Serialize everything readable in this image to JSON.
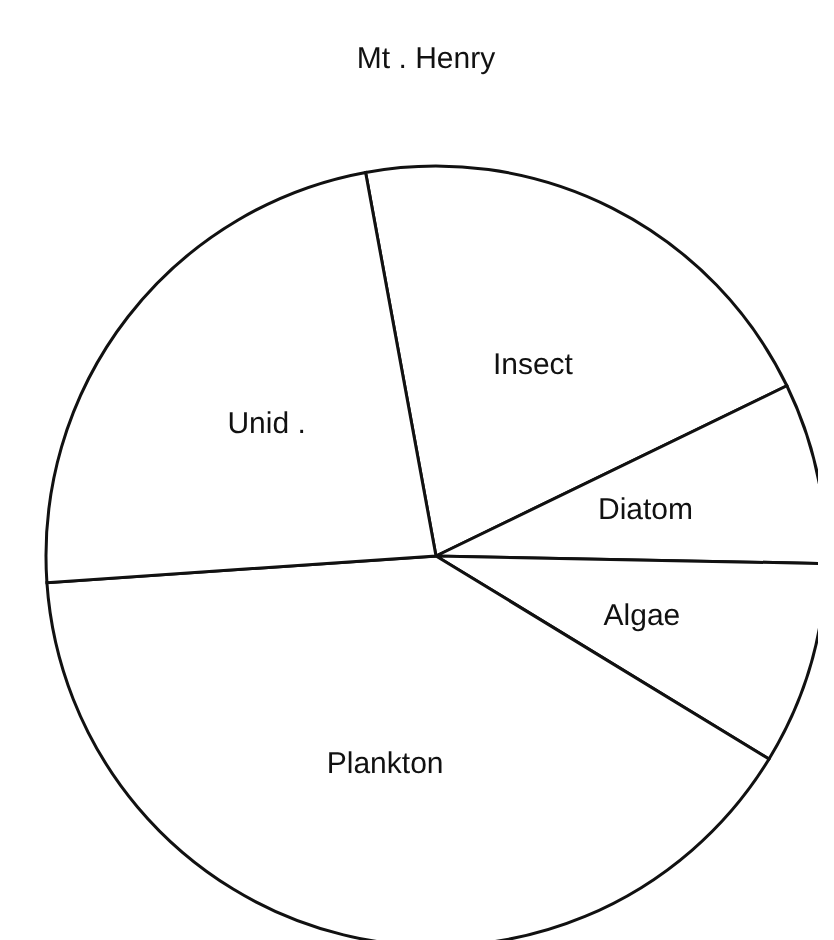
{
  "chart_data": {
    "type": "pie",
    "title": "Mt . Henry",
    "categories": [
      "Insect",
      "Diatom",
      "Algae",
      "Plankton",
      "Unid ."
    ],
    "values": [
      20.7,
      7.5,
      8.4,
      40.2,
      23.2
    ],
    "colors": [
      "#ffffff",
      "#ffffff",
      "#ffffff",
      "#ffffff",
      "#ffffff"
    ]
  }
}
